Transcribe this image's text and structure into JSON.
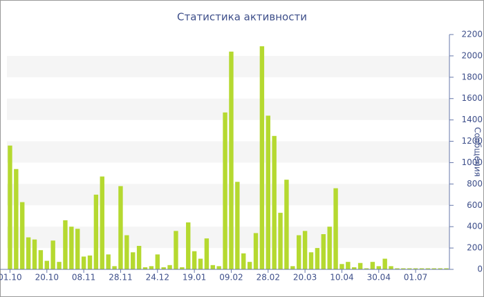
{
  "chart_data": {
    "type": "bar",
    "title": "Статистика активности",
    "y_label": "Сообщения",
    "categories": [
      "01.10",
      null,
      null,
      null,
      null,
      null,
      "20.10",
      null,
      null,
      null,
      null,
      null,
      "08.11",
      null,
      null,
      null,
      null,
      null,
      "28.11",
      null,
      null,
      null,
      null,
      null,
      "24.12",
      null,
      null,
      null,
      null,
      null,
      "19.01",
      null,
      null,
      null,
      null,
      null,
      "09.02",
      null,
      null,
      null,
      null,
      null,
      "28.02",
      null,
      null,
      null,
      null,
      null,
      "20.03",
      null,
      null,
      null,
      null,
      null,
      "10.04",
      null,
      null,
      null,
      null,
      null,
      "30.04",
      null,
      null,
      null,
      null,
      null,
      "01.07",
      null,
      null,
      null,
      null,
      null
    ],
    "values": [
      1160,
      940,
      630,
      300,
      280,
      180,
      80,
      270,
      70,
      460,
      400,
      380,
      120,
      130,
      700,
      870,
      140,
      30,
      780,
      320,
      160,
      220,
      20,
      30,
      140,
      20,
      40,
      360,
      20,
      440,
      170,
      100,
      290,
      40,
      30,
      1470,
      2040,
      820,
      150,
      70,
      340,
      2090,
      1440,
      1250,
      530,
      840,
      30,
      320,
      360,
      160,
      200,
      330,
      400,
      760,
      50,
      70,
      20,
      60,
      10,
      70,
      30,
      100,
      30,
      10,
      10,
      10,
      10,
      10,
      10,
      10,
      10,
      10
    ],
    "color": "#b5d930",
    "ylim": [
      0,
      2200
    ],
    "yticks": [
      0,
      200,
      400,
      600,
      800,
      1000,
      1200,
      1400,
      1600,
      1800,
      2000,
      2200
    ],
    "grid": true
  }
}
